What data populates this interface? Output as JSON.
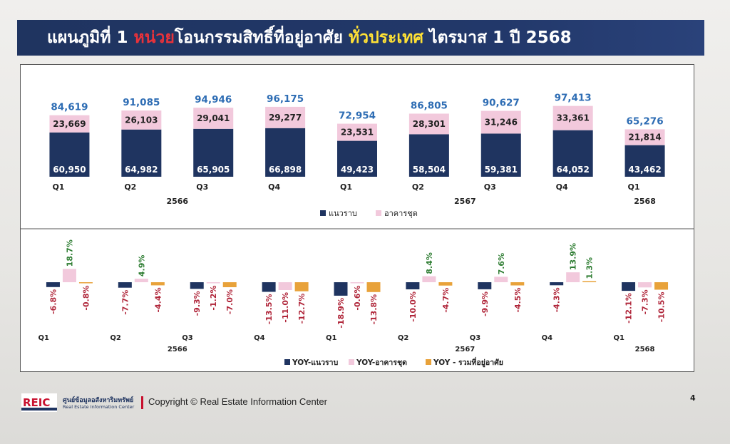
{
  "title": {
    "part1": "แผนภูมิที่ 1 ",
    "part2": "หน่วย",
    "part3": "โอนกรรมสิทธิ์ที่อยู่อาศัย ",
    "part4": "ทั่วประเทศ",
    "part5": " ไตรมาส 1 ปี 2568"
  },
  "colors": {
    "landed": "#1f3460",
    "condo": "#f2c9dc",
    "total_yoy": "#e8a23a",
    "total_label": "#2e6db4",
    "negative_label": "#b0263a",
    "positive_label": "#2e7d32",
    "title_red": "#e8323a",
    "title_yellow": "#ffe135"
  },
  "chart_data": [
    {
      "type": "bar",
      "stacked": true,
      "categories": [
        "Q1",
        "Q2",
        "Q3",
        "Q4",
        "Q1",
        "Q2",
        "Q3",
        "Q4",
        "Q1"
      ],
      "year_groups": [
        {
          "label": "2566",
          "start": 0,
          "end": 3
        },
        {
          "label": "2567",
          "start": 4,
          "end": 7
        },
        {
          "label": "2568",
          "start": 8,
          "end": 8
        }
      ],
      "series": [
        {
          "name": "แนวราบ",
          "values": [
            60950,
            64982,
            65905,
            66898,
            49423,
            58504,
            59381,
            64052,
            43462
          ]
        },
        {
          "name": "อาคารชุด",
          "values": [
            23669,
            26103,
            29041,
            29277,
            23531,
            28301,
            31246,
            33361,
            21814
          ]
        }
      ],
      "totals": [
        84619,
        91085,
        94946,
        96175,
        72954,
        86805,
        90627,
        97413,
        65276
      ],
      "value_labels": {
        "landed": [
          "60,950",
          "64,982",
          "65,905",
          "66,898",
          "49,423",
          "58,504",
          "59,381",
          "64,052",
          "43,462"
        ],
        "condo": [
          "23,669",
          "26,103",
          "29,041",
          "29,277",
          "23,531",
          "28,301",
          "31,246",
          "33,361",
          "21,814"
        ],
        "totals": [
          "84,619",
          "91,085",
          "94,946",
          "96,175",
          "72,954",
          "86,805",
          "90,627",
          "97,413",
          "65,276"
        ]
      },
      "legend_position": "bottom-center",
      "grid": false
    },
    {
      "type": "bar",
      "categories": [
        "Q1",
        "Q2",
        "Q3",
        "Q4",
        "Q1",
        "Q2",
        "Q3",
        "Q4",
        "Q1"
      ],
      "year_groups": [
        {
          "label": "2566",
          "start": 0,
          "end": 3
        },
        {
          "label": "2567",
          "start": 4,
          "end": 7
        },
        {
          "label": "2568",
          "start": 8,
          "end": 8
        }
      ],
      "series": [
        {
          "name": "YOY-แนวราบ",
          "values": [
            -6.8,
            -7.7,
            -9.3,
            -13.5,
            -18.9,
            -10.0,
            -9.9,
            -4.3,
            -12.1
          ]
        },
        {
          "name": "YOY-อาคารชุด",
          "values": [
            18.7,
            4.9,
            -1.2,
            -11.0,
            -0.6,
            8.4,
            7.6,
            13.9,
            -7.3
          ]
        },
        {
          "name": "YOY - รวมที่อยู่อาศัย",
          "values": [
            -0.8,
            -4.4,
            -7.0,
            -12.7,
            -13.8,
            -4.7,
            -4.5,
            1.3,
            -10.5
          ]
        }
      ],
      "value_labels": [
        [
          "-6.8%",
          "-7.7%",
          "-9.3%",
          "-13.5%",
          "-18.9%",
          "-10.0%",
          "-9.9%",
          "-4.3%",
          "-12.1%"
        ],
        [
          "18.7%",
          "4.9%",
          "-1.2%",
          "-11.0%",
          "-0.6%",
          "8.4%",
          "7.6%",
          "13.9%",
          "-7.3%"
        ],
        [
          "-0.8%",
          "-4.4%",
          "-7.0%",
          "-12.7%",
          "-13.8%",
          "-4.7%",
          "-4.5%",
          "1.3%",
          "-10.5%"
        ]
      ],
      "legend_position": "bottom-center",
      "grid": false
    }
  ],
  "footer": {
    "logo_text": "REIC",
    "org_name_th": "ศูนย์ข้อมูลอสังหาริมทรัพย์",
    "org_name_en": "Real Estate Information Center",
    "copyright": "Copyright © Real Estate Information Center",
    "page_number": "4"
  }
}
